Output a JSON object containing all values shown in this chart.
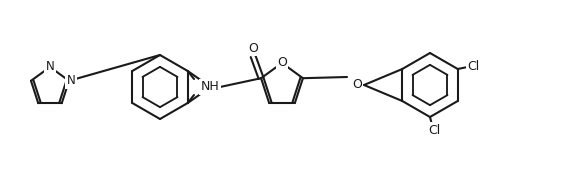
{
  "background_color": "#ffffff",
  "line_color": "#1a1a1a",
  "line_width": 1.5,
  "text_color": "#1a1a1a",
  "font_size": 9,
  "figsize": [
    5.65,
    1.69
  ],
  "dpi": 100,
  "atoms": {
    "N_label": "N",
    "NH_label": "NH",
    "O_carbonyl": "O",
    "O_furan": "O",
    "O_ether": "O",
    "Cl1_label": "Cl",
    "Cl2_label": "Cl",
    "N_pyrazole": "N"
  }
}
